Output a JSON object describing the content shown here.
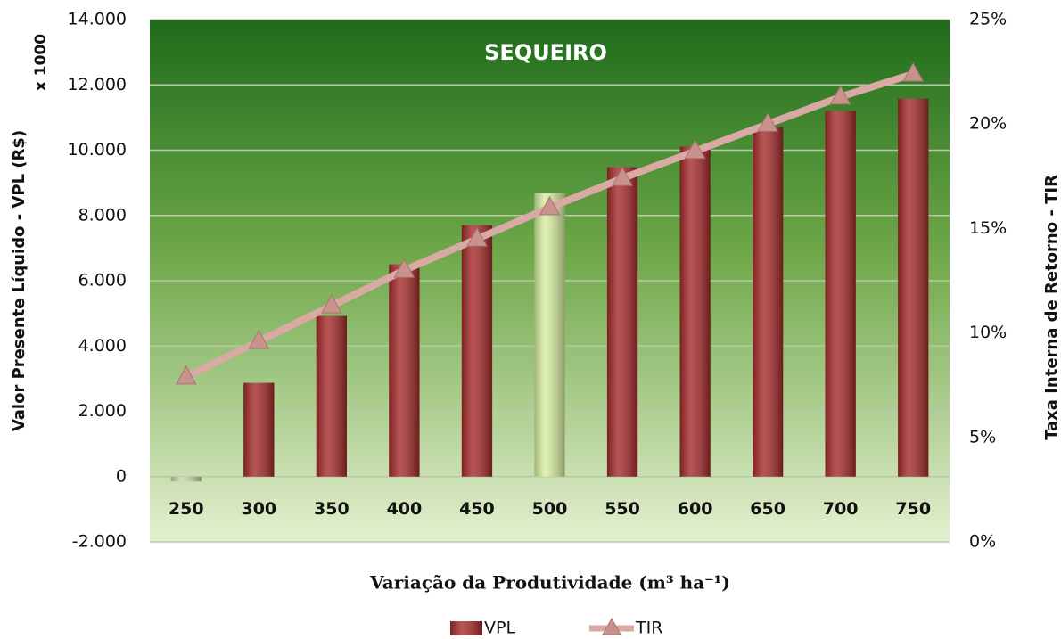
{
  "chart_data": {
    "type": "bar_line",
    "title": "SEQUEIRO",
    "y_unit_label": "x 1000",
    "y_label": "Valor  Presente  Líquido - VPL (R$)",
    "y2_label": "Taxa  Interna  de  Retorno - TIR",
    "x_label": "Variação da Produtividade (m³ ha⁻¹)",
    "categories": [
      "250",
      "300",
      "350",
      "400",
      "450",
      "500",
      "550",
      "600",
      "650",
      "700",
      "750"
    ],
    "series": [
      {
        "name": "VPL",
        "type": "bar",
        "color": "#a52a2a",
        "colors": [
          "#c9d9a8",
          "#a52a2a",
          "#a52a2a",
          "#a52a2a",
          "#a52a2a",
          "#d8eea0",
          "#a52a2a",
          "#a52a2a",
          "#a52a2a",
          "#a52a2a",
          "#a52a2a"
        ],
        "values": [
          -150,
          2870,
          4920,
          6500,
          7700,
          8690,
          9480,
          10110,
          10710,
          11200,
          11580
        ]
      },
      {
        "name": "TIR",
        "type": "line",
        "axis": "y2",
        "color": "#d9a9a4",
        "values": [
          7.9,
          9.6,
          11.3,
          13.0,
          14.5,
          16.0,
          17.4,
          18.7,
          20.0,
          21.3,
          22.4
        ]
      }
    ],
    "ylim": [
      -2000,
      14000
    ],
    "yticks": [
      {
        "value": -2000,
        "label": "-2.000"
      },
      0,
      {
        "value": 2000,
        "label": "2.000"
      },
      {
        "value": 4000,
        "label": "4.000"
      },
      {
        "value": 6000,
        "label": "6.000"
      },
      {
        "value": 8000,
        "label": "8.000"
      },
      {
        "value": 10000,
        "label": "10.000"
      },
      {
        "value": 12000,
        "label": "12.000"
      },
      {
        "value": 14000,
        "label": "14.000"
      }
    ],
    "y2lim": [
      0,
      25
    ],
    "y2ticks": [
      {
        "value": 0,
        "label": "0%"
      },
      {
        "value": 5,
        "label": "5%"
      },
      {
        "value": 10,
        "label": "10%"
      },
      {
        "value": 15,
        "label": "15%"
      },
      {
        "value": 20,
        "label": "20%"
      },
      {
        "value": 25,
        "label": "25%"
      }
    ],
    "grid": true,
    "legend": "bottom"
  }
}
